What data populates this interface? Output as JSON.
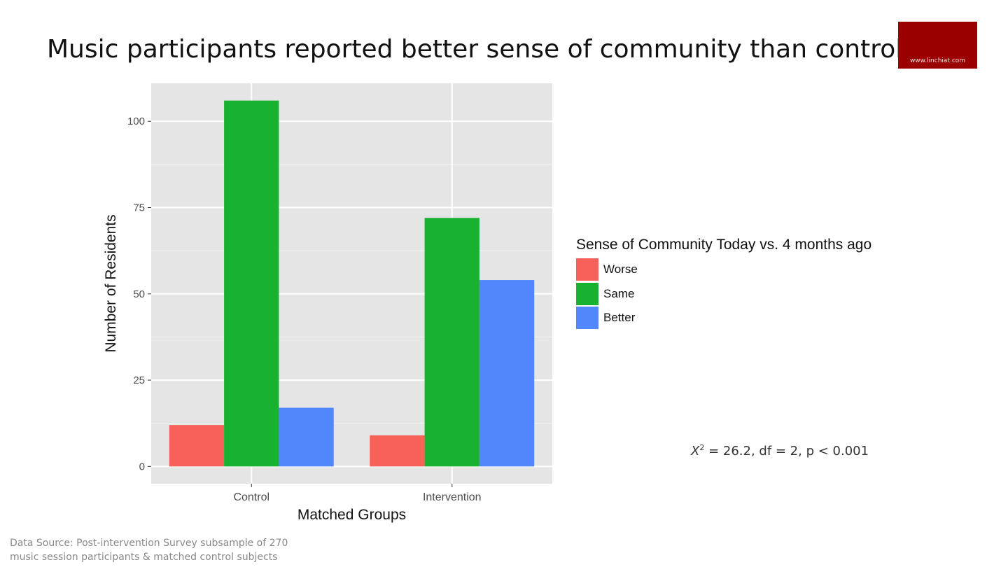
{
  "slide": {
    "title": "Music participants reported better sense of community than controls",
    "brand": "www.linchiat.com",
    "brand_color": "#9b0000"
  },
  "stat_note": {
    "symbol": "X",
    "superscript": "2",
    "text": " = 26.2, df = 2, p < 0.001"
  },
  "source": {
    "line1": "Data Source: Post-intervention Survey subsample of 270",
    "line2": "music session participants & matched control subjects"
  },
  "chart_data": {
    "type": "bar",
    "categories": [
      "Control",
      "Intervention"
    ],
    "series": [
      {
        "name": "Worse",
        "values": [
          12,
          9
        ],
        "color": "#f8615a"
      },
      {
        "name": "Same",
        "values": [
          106,
          72
        ],
        "color": "#19b230"
      },
      {
        "name": "Better",
        "values": [
          17,
          54
        ],
        "color": "#5186fd"
      }
    ],
    "xlabel": "Matched Groups",
    "ylabel": "Number of Residents",
    "ylim": [
      -5,
      111
    ],
    "yticks": [
      0,
      25,
      50,
      75,
      100
    ],
    "grid": true,
    "panel_color": "#e5e5e5",
    "legend": {
      "title": "Sense of Community Today vs. 4 months ago",
      "position": "right"
    }
  }
}
